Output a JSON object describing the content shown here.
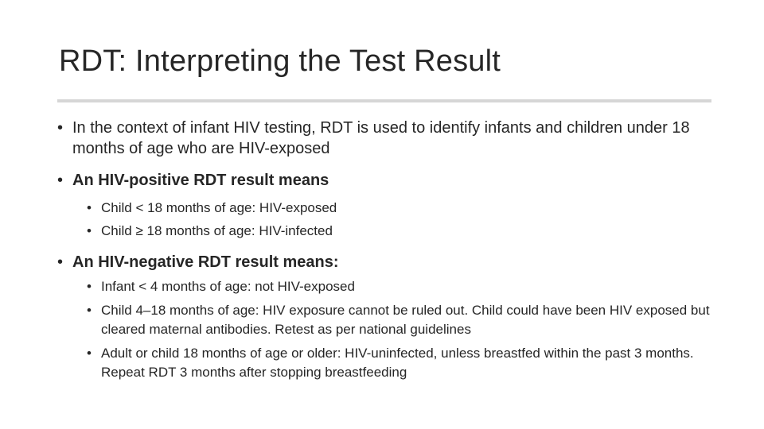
{
  "slide": {
    "title": "RDT: Interpreting the Test Result",
    "bullet_char": "•",
    "items": [
      {
        "text": "In the context of infant HIV testing, RDT is used to identify infants and children under 18 months of age who are HIV-exposed",
        "subitems": []
      },
      {
        "text": "An HIV-positive RDT result means",
        "subitems": [
          "Child < 18 months of age: HIV-exposed",
          "Child ≥ 18 months of age: HIV-infected"
        ]
      },
      {
        "text": "An HIV-negative RDT result means:",
        "subitems": [
          "Infant < 4 months of age: not HIV-exposed",
          "Child 4–18 months of age: HIV exposure cannot be ruled out. Child could have been HIV exposed but cleared maternal antibodies.  Retest as per national guidelines",
          "Adult or child 18 months of age or older: HIV-uninfected, unless breastfed within the past 3 months. Repeat RDT 3 months after stopping breastfeeding"
        ]
      }
    ]
  }
}
